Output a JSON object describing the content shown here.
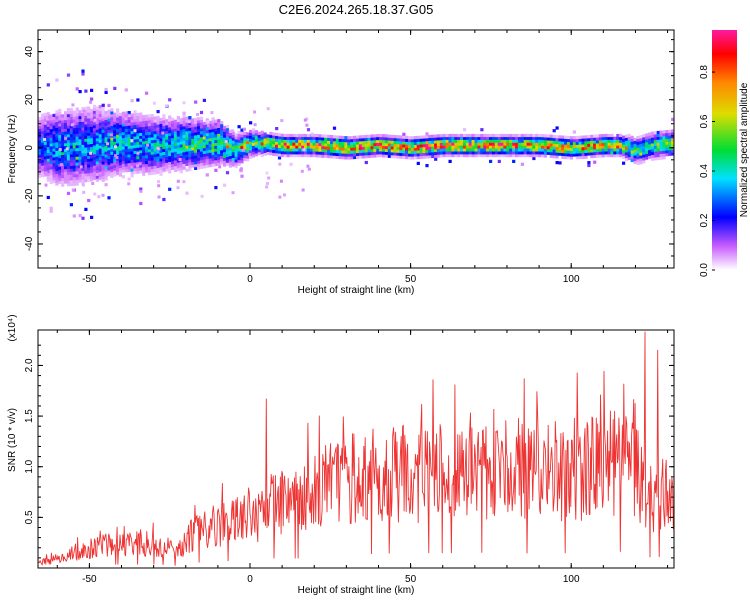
{
  "figure": {
    "title": "C2E6.2024.265.18.37.G05"
  },
  "chart_data": [
    {
      "type": "heatmap",
      "panel": "top",
      "xlabel": "Height of straight line (km)",
      "ylabel": "Frequency (Hz)",
      "xlim": [
        -66,
        132
      ],
      "ylim": [
        -50,
        49
      ],
      "xticks": [
        -50,
        0,
        50,
        100
      ],
      "xtick_labels": [
        "-50",
        "0",
        "50",
        "100"
      ],
      "yticks": [
        -40,
        -20,
        0,
        20,
        40
      ],
      "ytick_labels": [
        "-40",
        "-20",
        "0",
        "20",
        "40"
      ],
      "colorbar": {
        "label": "Normalized spectral amplitude",
        "range": [
          0,
          0.97
        ],
        "ticks": [
          0.0,
          0.2,
          0.4,
          0.6,
          0.8
        ],
        "tick_labels": [
          "0.0",
          "0.2",
          "0.4",
          "0.6",
          "0.8"
        ],
        "colormap": "rainbow (white-purple-blue-cyan-green-yellow-orange-red-magenta)"
      },
      "ridge": {
        "x": [
          -66,
          -60,
          -50,
          -40,
          -30,
          -20,
          -10,
          -5,
          0,
          5,
          10,
          20,
          30,
          40,
          50,
          60,
          70,
          80,
          90,
          100,
          110,
          115,
          120,
          125,
          132
        ],
        "frequency": [
          1,
          0,
          1,
          2,
          1,
          2,
          2,
          -1,
          2,
          2,
          1,
          1,
          0,
          1,
          0,
          1,
          1,
          1,
          1,
          0,
          1,
          1,
          -1,
          1,
          2
        ],
        "spread_hz": [
          10,
          12,
          12,
          10,
          9,
          8,
          7,
          5,
          4,
          3,
          3,
          3,
          3,
          3,
          3,
          3,
          3,
          3,
          3,
          3,
          3,
          3,
          4,
          4,
          4
        ],
        "peak_amplitude": [
          0.3,
          0.35,
          0.35,
          0.4,
          0.4,
          0.45,
          0.5,
          0.5,
          0.6,
          0.75,
          0.85,
          0.85,
          0.9,
          0.85,
          0.85,
          0.9,
          0.85,
          0.8,
          0.8,
          0.75,
          0.8,
          0.75,
          0.5,
          0.55,
          0.6
        ]
      }
    },
    {
      "type": "line",
      "panel": "bottom",
      "xlabel": "Height of straight line (km)",
      "ylabel": "SNR (10 * v/v)",
      "multiplier": "(x10⁴)",
      "xlim": [
        -66,
        132
      ],
      "ylim": [
        0,
        2.35
      ],
      "xticks": [
        -50,
        0,
        50,
        100
      ],
      "xtick_labels": [
        "-50",
        "0",
        "50",
        "100"
      ],
      "yticks": [
        0.5,
        1.0,
        1.5,
        2.0
      ],
      "ytick_labels": [
        "0.5",
        "1.0",
        "1.5",
        "2.0"
      ],
      "color": "#ee3333",
      "series": [
        {
          "x": [
            -66,
            -60,
            -55,
            -50,
            -45,
            -40,
            -35,
            -30,
            -25,
            -22,
            -20,
            -15,
            -10,
            -5,
            0,
            5,
            10,
            15,
            20,
            25,
            30,
            35,
            40,
            45,
            50,
            55,
            60,
            65,
            70,
            75,
            80,
            85,
            90,
            95,
            100,
            105,
            110,
            115,
            120,
            125,
            130,
            132
          ],
          "y": [
            0.05,
            0.1,
            0.15,
            0.2,
            0.25,
            0.25,
            0.25,
            0.25,
            0.2,
            0.15,
            0.3,
            0.4,
            0.45,
            0.5,
            0.55,
            0.6,
            0.7,
            0.65,
            0.85,
            0.85,
            0.9,
            0.95,
            0.95,
            1.0,
            0.95,
            1.0,
            1.0,
            1.0,
            1.05,
            1.0,
            1.0,
            1.0,
            0.95,
            1.0,
            1.0,
            1.05,
            1.05,
            1.1,
            1.0,
            0.7,
            0.8,
            0.75
          ]
        }
      ],
      "peaks": [
        {
          "x": 5,
          "y": 1.67
        },
        {
          "x": 18,
          "y": 1.43
        },
        {
          "x": 123,
          "y": 2.33
        },
        {
          "x": 127,
          "y": 2.15
        }
      ]
    }
  ]
}
